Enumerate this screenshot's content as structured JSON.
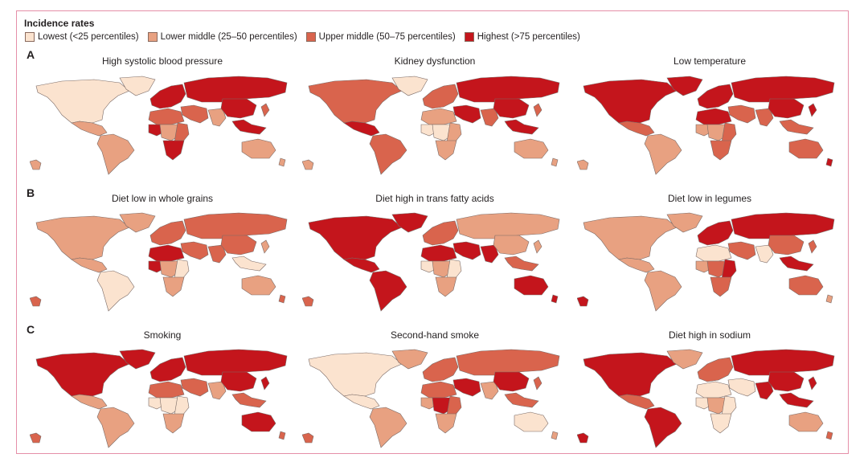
{
  "legend": {
    "title": "Incidence rates",
    "items": [
      {
        "label": "Lowest (<25 percentiles)",
        "color": "#fbe3cf"
      },
      {
        "label": "Lower middle (25–50 percentiles)",
        "color": "#e8a181"
      },
      {
        "label": "Upper middle (50–75 percentiles)",
        "color": "#d9644d"
      },
      {
        "label": "Highest (>75 percentiles)",
        "color": "#c4151c"
      }
    ]
  },
  "sections": [
    {
      "label": "A",
      "maps": [
        {
          "title": "High systolic blood pressure",
          "levels": {
            "na": 0,
            "gl": 0,
            "ca": 1,
            "sa": 1,
            "ss": 1,
            "eu": 3,
            "ru": 3,
            "me": 2,
            "nafr": 2,
            "waf": 3,
            "caf": 1,
            "eaf": 2,
            "saf": 3,
            "ind": 1,
            "chn": 3,
            "sea": 3,
            "jp": 2,
            "au": 1,
            "nz": 1
          }
        },
        {
          "title": "Kidney dysfunction",
          "levels": {
            "na": 2,
            "gl": 0,
            "ca": 3,
            "sa": 2,
            "ss": 1,
            "eu": 2,
            "ru": 3,
            "me": 3,
            "nafr": 1,
            "waf": 0,
            "caf": 0,
            "eaf": 1,
            "saf": 1,
            "ind": 2,
            "chn": 3,
            "sea": 3,
            "jp": 2,
            "au": 1,
            "nz": 1
          }
        },
        {
          "title": "Low temperature",
          "levels": {
            "na": 3,
            "gl": 3,
            "ca": 2,
            "sa": 1,
            "ss": 1,
            "eu": 3,
            "ru": 3,
            "me": 2,
            "nafr": 3,
            "waf": 1,
            "caf": 1,
            "eaf": 2,
            "saf": 2,
            "ind": 2,
            "chn": 3,
            "sea": 2,
            "jp": 3,
            "au": 2,
            "nz": 3
          }
        }
      ]
    },
    {
      "label": "B",
      "maps": [
        {
          "title": "Diet low in whole grains",
          "levels": {
            "na": 1,
            "gl": 1,
            "ca": 1,
            "sa": 0,
            "ss": 2,
            "eu": 2,
            "ru": 2,
            "me": 2,
            "nafr": 3,
            "waf": 3,
            "caf": 1,
            "eaf": 0,
            "saf": 1,
            "ind": 2,
            "chn": 2,
            "sea": 0,
            "jp": 1,
            "au": 1,
            "nz": 2
          }
        },
        {
          "title": "Diet high in trans fatty acids",
          "levels": {
            "na": 3,
            "gl": 3,
            "ca": 3,
            "sa": 3,
            "ss": 2,
            "eu": 2,
            "ru": 1,
            "me": 3,
            "nafr": 3,
            "waf": 0,
            "caf": 1,
            "eaf": 0,
            "saf": 1,
            "ind": 3,
            "chn": 1,
            "sea": 2,
            "jp": 1,
            "au": 3,
            "nz": 3
          }
        },
        {
          "title": "Diet low in legumes",
          "levels": {
            "na": 1,
            "gl": 1,
            "ca": 1,
            "sa": 1,
            "ss": 3,
            "eu": 3,
            "ru": 3,
            "me": 2,
            "nafr": 0,
            "waf": 1,
            "caf": 2,
            "eaf": 3,
            "saf": 2,
            "ind": 0,
            "chn": 2,
            "sea": 3,
            "jp": 2,
            "au": 2,
            "nz": 1
          }
        }
      ]
    },
    {
      "label": "C",
      "maps": [
        {
          "title": "Smoking",
          "levels": {
            "na": 3,
            "gl": 3,
            "ca": 1,
            "sa": 1,
            "ss": 2,
            "eu": 3,
            "ru": 3,
            "me": 2,
            "nafr": 2,
            "waf": 0,
            "caf": 0,
            "eaf": 0,
            "saf": 1,
            "ind": 1,
            "chn": 3,
            "sea": 2,
            "jp": 3,
            "au": 3,
            "nz": 2
          }
        },
        {
          "title": "Second-hand smoke",
          "levels": {
            "na": 0,
            "gl": 1,
            "ca": 0,
            "sa": 1,
            "ss": 2,
            "eu": 2,
            "ru": 2,
            "me": 3,
            "nafr": 2,
            "waf": 1,
            "caf": 3,
            "eaf": 2,
            "saf": 1,
            "ind": 1,
            "chn": 3,
            "sea": 2,
            "jp": 2,
            "au": 0,
            "nz": 1
          }
        },
        {
          "title": "Diet high in sodium",
          "levels": {
            "na": 3,
            "gl": 1,
            "ca": 2,
            "sa": 3,
            "ss": 3,
            "eu": 2,
            "ru": 3,
            "me": 0,
            "nafr": 0,
            "waf": 0,
            "caf": 1,
            "eaf": 0,
            "saf": 0,
            "ind": 3,
            "chn": 3,
            "sea": 3,
            "jp": 3,
            "au": 1,
            "nz": 2
          }
        }
      ]
    }
  ]
}
